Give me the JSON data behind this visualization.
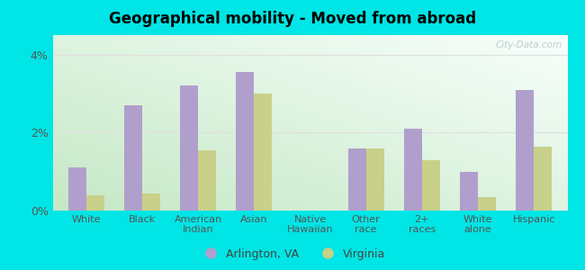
{
  "title": "Geographical mobility - Moved from abroad",
  "categories": [
    "White",
    "Black",
    "American\nIndian",
    "Asian",
    "Native\nHawaiian",
    "Other\nrace",
    "2+\nraces",
    "White\nalone",
    "Hispanic"
  ],
  "arlington": [
    1.1,
    2.7,
    3.2,
    3.55,
    0.0,
    1.6,
    2.1,
    1.0,
    3.1
  ],
  "virginia": [
    0.4,
    0.45,
    1.55,
    3.0,
    0.0,
    1.6,
    1.3,
    0.35,
    1.65
  ],
  "arlington_color": "#b09fcc",
  "virginia_color": "#c8d08a",
  "figure_bg": "#00e5e5",
  "gradient_color_bottom_left": "#c5e8c5",
  "gradient_color_top_right": "#f8fffc",
  "grid_color": "#e0e0e0",
  "yticks": [
    0,
    2,
    4
  ],
  "ytick_labels": [
    "0%",
    "2%",
    "4%"
  ],
  "ylim": [
    0,
    4.5
  ],
  "bar_width": 0.32,
  "legend_arlington": "Arlington, VA",
  "legend_virginia": "Virginia",
  "watermark": "City-Data.com"
}
